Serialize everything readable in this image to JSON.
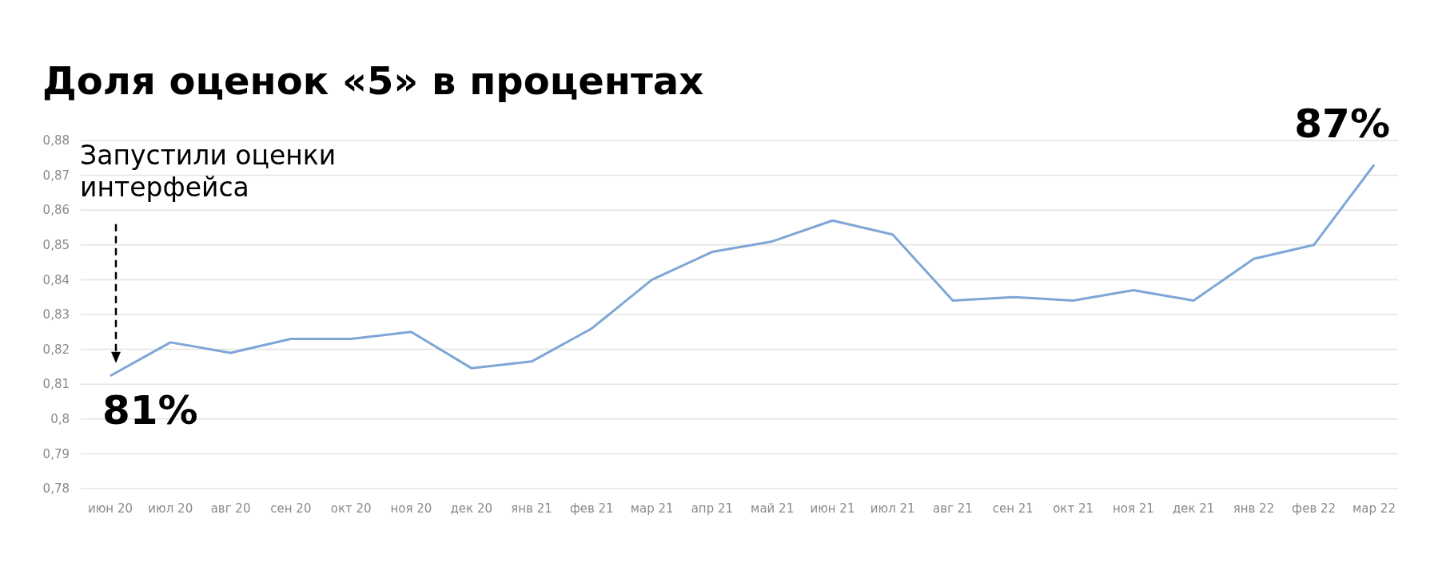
{
  "chart_data": {
    "type": "line",
    "title": "Доля оценок «5» в процентах",
    "categories": [
      "июн 20",
      "июл 20",
      "авг 20",
      "сен 20",
      "окт 20",
      "ноя 20",
      "дек 20",
      "янв 21",
      "фев 21",
      "мар 21",
      "апр 21",
      "май 21",
      "июн 21",
      "июл 21",
      "авг 21",
      "сен 21",
      "окт 21",
      "ноя 21",
      "дек 21",
      "янв 22",
      "фев 22",
      "мар 22"
    ],
    "series": [
      {
        "color": "#7ea6d6",
        "values": [
          0.8124,
          0.822,
          0.819,
          0.823,
          0.823,
          0.825,
          0.8146,
          0.8165,
          0.826,
          0.84,
          0.848,
          0.851,
          0.857,
          0.853,
          0.834,
          0.835,
          0.834,
          0.837,
          0.834,
          0.846,
          0.85,
          0.873
        ]
      }
    ],
    "ylim": [
      0.78,
      0.88
    ],
    "yticks": [
      {
        "value": 0.78,
        "label": "0,78"
      },
      {
        "value": 0.79,
        "label": "0,79"
      },
      {
        "value": 0.8,
        "label": "0,8"
      },
      {
        "value": 0.81,
        "label": "0,81"
      },
      {
        "value": 0.82,
        "label": "0,82"
      },
      {
        "value": 0.83,
        "label": "0,83"
      },
      {
        "value": 0.84,
        "label": "0,84"
      },
      {
        "value": 0.85,
        "label": "0,85"
      },
      {
        "value": 0.86,
        "label": "0,86"
      },
      {
        "value": 0.87,
        "label": "0,87"
      },
      {
        "value": 0.88,
        "label": "0,88"
      }
    ],
    "grid": "y",
    "marker": "none",
    "line_style": "solid",
    "annotations": [
      "Запустили оценки интерфейса",
      {
        "text": "81%",
        "x": "июн 20",
        "y": 0.8124
      },
      {
        "text": "87%",
        "x": "мар 22",
        "y": 0.873
      }
    ]
  }
}
